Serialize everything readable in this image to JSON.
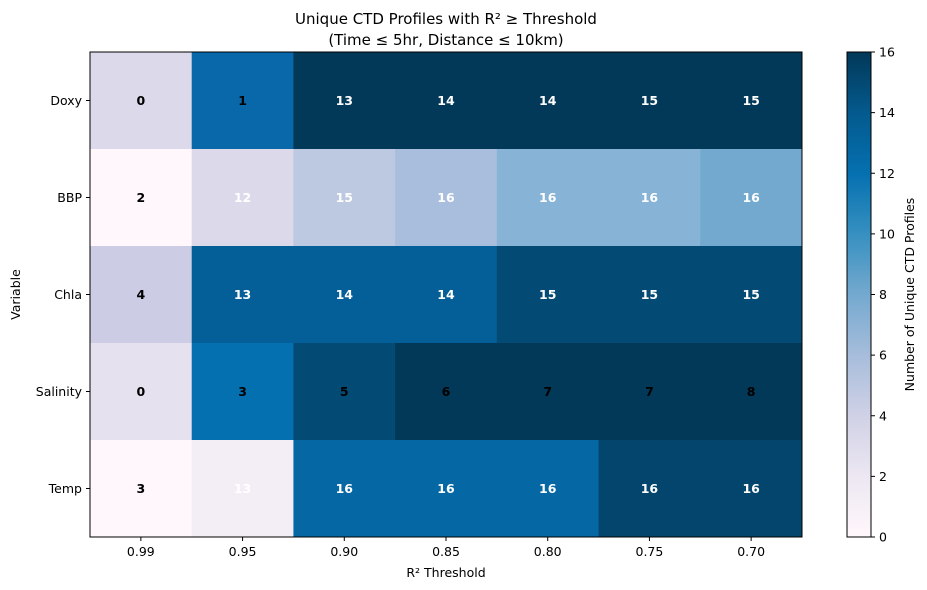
{
  "chart_data": {
    "type": "heatmap",
    "title": [
      "Unique CTD Profiles with R² ≥ Threshold",
      "(Time ≤ 5hr, Distance ≤ 10km)"
    ],
    "xlabel": "R² Threshold",
    "ylabel": "Variable",
    "x_categories": [
      "0.99",
      "0.95",
      "0.90",
      "0.85",
      "0.80",
      "0.75",
      "0.70"
    ],
    "y_categories": [
      "Doxy",
      "BBP",
      "Chla",
      "Salinity",
      "Temp"
    ],
    "cell_colors": [
      [
        "#dcd9ea",
        "#0868aa",
        "#023858",
        "#023858",
        "#023858",
        "#023858",
        "#023858"
      ],
      [
        "#fff7fb",
        "#dcd9ea",
        "#bdc8e1",
        "#a9bddc",
        "#86b3d6",
        "#86b3d6",
        "#73a9cf"
      ],
      [
        "#cccde5",
        "#045e97",
        "#045e97",
        "#045e97",
        "#034a74",
        "#034a74",
        "#034a74"
      ],
      [
        "#e6e1ef",
        "#0570b0",
        "#034a74",
        "#023858",
        "#023858",
        "#023858",
        "#023858"
      ],
      [
        "#fff7fb",
        "#f3edf5",
        "#0568a5",
        "#0568a5",
        "#0568a5",
        "#03456c",
        "#03456c"
      ]
    ],
    "annotations": [
      [
        0,
        1,
        13,
        14,
        14,
        15,
        15
      ],
      [
        2,
        12,
        15,
        16,
        16,
        16,
        16
      ],
      [
        4,
        13,
        14,
        14,
        15,
        15,
        15
      ],
      [
        0,
        3,
        5,
        6,
        7,
        7,
        8
      ],
      [
        3,
        13,
        16,
        16,
        16,
        16,
        16
      ]
    ],
    "annotation_colors": [
      [
        "black",
        "black",
        "white",
        "white",
        "white",
        "white",
        "white"
      ],
      [
        "black",
        "white",
        "white",
        "white",
        "white",
        "white",
        "white"
      ],
      [
        "black",
        "white",
        "white",
        "white",
        "white",
        "white",
        "white"
      ],
      [
        "black",
        "black",
        "black",
        "black",
        "black",
        "black",
        "black"
      ],
      [
        "black",
        "white",
        "white",
        "white",
        "white",
        "white",
        "white"
      ]
    ],
    "colorbar": {
      "label": "Number of Unique CTD Profiles",
      "min": 0,
      "max": 16,
      "ticks": [
        "0",
        "2",
        "4",
        "6",
        "8",
        "10",
        "12",
        "14",
        "16"
      ],
      "colormap": "PuBu",
      "stops": [
        "#fff7fb",
        "#ece7f2",
        "#d0d1e6",
        "#a6bddb",
        "#74a9cf",
        "#3690c0",
        "#0570b0",
        "#045a8d",
        "#023858"
      ]
    }
  }
}
